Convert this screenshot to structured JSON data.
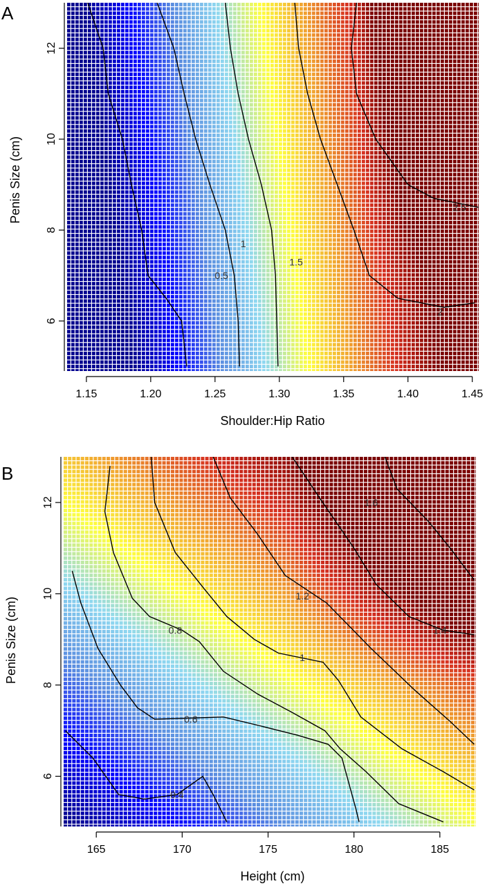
{
  "chart_data": [
    {
      "type": "heatmap",
      "panel_label": "A",
      "xlabel": "Shoulder:Hip Ratio",
      "ylabel": "Penis Size (cm)",
      "xlim": [
        1.135,
        1.455
      ],
      "ylim": [
        4.9,
        13.0
      ],
      "x_ticks": [
        1.15,
        1.2,
        1.25,
        1.3,
        1.35,
        1.4,
        1.45
      ],
      "x_tick_labels": [
        "1.15",
        "1.20",
        "1.25",
        "1.30",
        "1.35",
        "1.40",
        "1.45"
      ],
      "y_ticks": [
        6,
        8,
        10,
        12
      ],
      "y_tick_labels": [
        "6",
        "8",
        "10",
        "12"
      ],
      "color_range": [
        0,
        2.5
      ],
      "colormap": [
        "#00008f",
        "#0000ff",
        "#5a8de0",
        "#8fd8f0",
        "#ffff3f",
        "#f0a030",
        "#d63020",
        "#7a0000"
      ],
      "contours": [
        {
          "level": 0.5,
          "label": "0.5",
          "label_at": [
            1.255,
            7.0
          ],
          "points": [
            [
              1.151,
              13.0
            ],
            [
              1.163,
              12.0
            ],
            [
              1.167,
              11.0
            ],
            [
              1.178,
              10.0
            ],
            [
              1.185,
              9.0
            ],
            [
              1.193,
              8.0
            ],
            [
              1.198,
              7.0
            ],
            [
              1.212,
              6.5
            ],
            [
              1.224,
              6.0
            ],
            [
              1.228,
              5.0
            ]
          ]
        },
        {
          "level": 1.0,
          "label": "1",
          "label_at": [
            1.272,
            7.7
          ],
          "points": [
            [
              1.205,
              13.0
            ],
            [
              1.218,
              12.0
            ],
            [
              1.226,
              11.0
            ],
            [
              1.235,
              10.0
            ],
            [
              1.246,
              9.0
            ],
            [
              1.258,
              8.0
            ],
            [
              1.265,
              7.0
            ],
            [
              1.268,
              6.0
            ],
            [
              1.269,
              5.0
            ]
          ]
        },
        {
          "level": 1.5,
          "label": "1.5",
          "label_at": [
            1.313,
            7.3
          ],
          "points": [
            [
              1.258,
              13.0
            ],
            [
              1.262,
              12.0
            ],
            [
              1.268,
              11.0
            ],
            [
              1.276,
              10.0
            ],
            [
              1.286,
              9.0
            ],
            [
              1.294,
              8.0
            ],
            [
              1.297,
              7.0
            ],
            [
              1.298,
              6.0
            ],
            [
              1.299,
              5.0
            ]
          ]
        },
        {
          "level": 2.0,
          "label": "2",
          "label_at": [
            1.425,
            6.2
          ],
          "points": [
            [
              1.312,
              13.0
            ],
            [
              1.315,
              12.0
            ],
            [
              1.322,
              11.0
            ],
            [
              1.332,
              10.0
            ],
            [
              1.345,
              9.0
            ],
            [
              1.358,
              8.0
            ],
            [
              1.37,
              7.0
            ],
            [
              1.392,
              6.5
            ],
            [
              1.428,
              6.3
            ],
            [
              1.452,
              6.4
            ]
          ]
        },
        {
          "level": 2.5,
          "label": "2.5",
          "label_at": [
            1.44,
            8.5
          ],
          "points": [
            [
              1.36,
              13.0
            ],
            [
              1.356,
              12.0
            ],
            [
              1.36,
              11.0
            ],
            [
              1.375,
              10.0
            ],
            [
              1.4,
              9.0
            ],
            [
              1.42,
              8.7
            ],
            [
              1.455,
              8.5
            ]
          ]
        }
      ]
    },
    {
      "type": "heatmap",
      "panel_label": "B",
      "xlabel": "Height (cm)",
      "ylabel": "Penis Size (cm)",
      "xlim": [
        163.1,
        187.1
      ],
      "ylim": [
        4.9,
        13.0
      ],
      "x_ticks": [
        165,
        170,
        175,
        180,
        185
      ],
      "x_tick_labels": [
        "165",
        "170",
        "175",
        "180",
        "185"
      ],
      "y_ticks": [
        6,
        8,
        10,
        12
      ],
      "y_tick_labels": [
        "6",
        "8",
        "10",
        "12"
      ],
      "color_range": [
        0.2,
        1.7
      ],
      "colormap": [
        "#00008f",
        "#0000ff",
        "#5a8de0",
        "#8fd8f0",
        "#ffff3f",
        "#f0a030",
        "#d63020",
        "#7a0000"
      ],
      "contours": [
        {
          "level": 0.4,
          "label": "0.4",
          "label_at": [
            169.7,
            5.6
          ],
          "points": [
            [
              163.2,
              7.0
            ],
            [
              164.8,
              6.4
            ],
            [
              166.3,
              5.6
            ],
            [
              167.8,
              5.5
            ],
            [
              169.7,
              5.6
            ],
            [
              171.2,
              6.0
            ],
            [
              171.8,
              5.6
            ],
            [
              172.6,
              5.0
            ]
          ]
        },
        {
          "level": 0.6,
          "label": "0.6",
          "label_at": [
            170.5,
            7.25
          ],
          "points": [
            [
              163.6,
              10.5
            ],
            [
              164.1,
              9.8
            ],
            [
              165.1,
              8.8
            ],
            [
              166.4,
              8.0
            ],
            [
              167.4,
              7.5
            ],
            [
              168.4,
              7.25
            ],
            [
              172.4,
              7.3
            ],
            [
              174.6,
              7.1
            ],
            [
              176.7,
              6.9
            ],
            [
              178.5,
              6.7
            ],
            [
              179.3,
              6.4
            ],
            [
              180.1,
              5.3
            ],
            [
              180.3,
              5.0
            ]
          ]
        },
        {
          "level": 0.8,
          "label": "0.8",
          "label_at": [
            169.6,
            9.2
          ],
          "points": [
            [
              165.8,
              12.8
            ],
            [
              165.5,
              11.8
            ],
            [
              166.0,
              10.9
            ],
            [
              167.1,
              9.9
            ],
            [
              168.1,
              9.5
            ],
            [
              170.0,
              9.2
            ],
            [
              171.0,
              8.95
            ],
            [
              172.4,
              8.3
            ],
            [
              174.4,
              7.8
            ],
            [
              176.4,
              7.4
            ],
            [
              178.3,
              7.0
            ],
            [
              179.2,
              6.6
            ],
            [
              180.7,
              6.1
            ],
            [
              182.6,
              5.4
            ],
            [
              185.2,
              5.0
            ]
          ]
        },
        {
          "level": 1.0,
          "label": "1",
          "label_at": [
            177.0,
            8.6
          ],
          "points": [
            [
              168.2,
              13.0
            ],
            [
              168.4,
              12.0
            ],
            [
              169.6,
              10.9
            ],
            [
              171.3,
              10.1
            ],
            [
              172.6,
              9.5
            ],
            [
              174.2,
              9.0
            ],
            [
              175.6,
              8.7
            ],
            [
              178.2,
              8.5
            ],
            [
              179.1,
              8.1
            ],
            [
              180.4,
              7.3
            ],
            [
              182.8,
              6.6
            ],
            [
              185.2,
              6.1
            ],
            [
              187.0,
              5.7
            ]
          ]
        },
        {
          "level": 1.2,
          "label": "1.2",
          "label_at": [
            177.0,
            9.95
          ],
          "points": [
            [
              171.8,
              13.0
            ],
            [
              172.8,
              12.1
            ],
            [
              174.4,
              11.3
            ],
            [
              176.0,
              10.4
            ],
            [
              178.4,
              9.8
            ],
            [
              181.0,
              8.8
            ],
            [
              183.5,
              7.9
            ],
            [
              185.6,
              7.2
            ],
            [
              187.0,
              6.7
            ]
          ]
        },
        {
          "level": 1.4,
          "label": "1.4",
          "label_at": [
            185.0,
            9.2
          ],
          "points": [
            [
              176.4,
              13.0
            ],
            [
              178.0,
              12.1
            ],
            [
              180.0,
              11.0
            ],
            [
              181.3,
              10.2
            ],
            [
              183.2,
              9.5
            ],
            [
              185.2,
              9.2
            ],
            [
              187.0,
              9.1
            ]
          ]
        },
        {
          "level": 1.6,
          "label": "1.6",
          "label_at": [
            181.0,
            12.0
          ],
          "points": [
            [
              181.8,
              13.0
            ],
            [
              182.5,
              12.3
            ],
            [
              184.3,
              11.6
            ],
            [
              185.6,
              11.0
            ],
            [
              187.0,
              10.3
            ]
          ]
        }
      ]
    }
  ]
}
